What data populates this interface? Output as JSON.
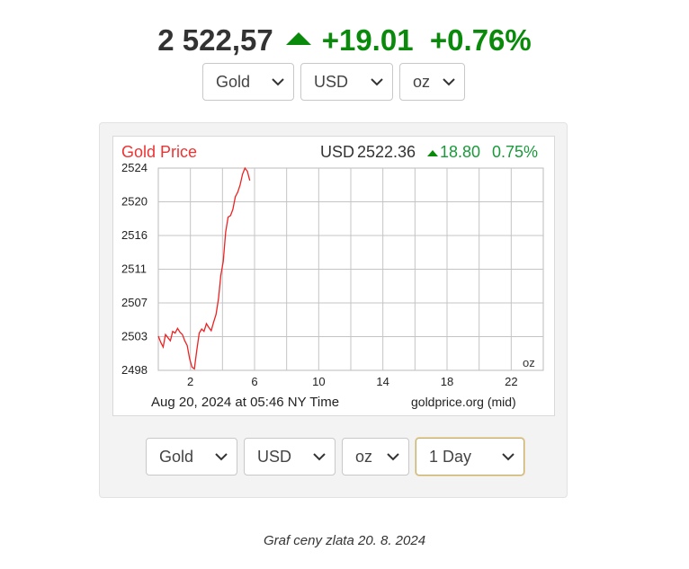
{
  "headline": {
    "price": "2 522,57",
    "change": "+19.01",
    "change_pct": "+0.76%",
    "trend_icon": "triangle-up-icon",
    "up_color": "#0a8a0a"
  },
  "top_selects": {
    "metal": "Gold",
    "currency": "USD",
    "unit": "oz"
  },
  "chart_header": {
    "title": "Gold Price",
    "currency": "USD",
    "price": "2522.36",
    "change": "18.80",
    "change_pct": "0.75%"
  },
  "chart_data": {
    "type": "line",
    "title": "Gold Price",
    "x_ticks": [
      "2",
      "6",
      "10",
      "14",
      "18",
      "22"
    ],
    "y_ticks": [
      "2524",
      "2520",
      "2516",
      "2511",
      "2507",
      "2503",
      "2498"
    ],
    "xlim": [
      0,
      24
    ],
    "ylim": [
      2498,
      2524
    ],
    "unit_label": "oz",
    "timestamp": "Aug 20, 2024 at 05:46 NY Time",
    "source": "goldprice.org (mid)",
    "series": [
      {
        "color": "#ee2222",
        "x": [
          0.0,
          0.15,
          0.3,
          0.45,
          0.6,
          0.75,
          0.9,
          1.05,
          1.2,
          1.35,
          1.5,
          1.65,
          1.8,
          1.95,
          2.1,
          2.25,
          2.4,
          2.55,
          2.7,
          2.85,
          3.0,
          3.15,
          3.3,
          3.45,
          3.6,
          3.75,
          3.9,
          4.05,
          4.2,
          4.35,
          4.5,
          4.65,
          4.8,
          4.95,
          5.1,
          5.25,
          5.4,
          5.55,
          5.7
        ],
        "y": [
          2502.4,
          2501.6,
          2501.0,
          2502.6,
          2502.2,
          2501.8,
          2503.0,
          2502.8,
          2503.4,
          2502.9,
          2502.6,
          2501.8,
          2501.2,
          2499.5,
          2498.4,
          2498.2,
          2500.6,
          2502.8,
          2503.3,
          2503.0,
          2504.0,
          2503.5,
          2503.1,
          2504.2,
          2505.2,
          2507.2,
          2510.2,
          2512.0,
          2515.8,
          2517.7,
          2517.9,
          2518.7,
          2520.3,
          2520.9,
          2521.8,
          2523.2,
          2524.0,
          2523.6,
          2522.4
        ]
      }
    ]
  },
  "bottom_selects": {
    "metal": "Gold",
    "currency": "USD",
    "unit": "oz",
    "range": "1 Day"
  },
  "caption": "Graf ceny zlata 20. 8. 2024"
}
